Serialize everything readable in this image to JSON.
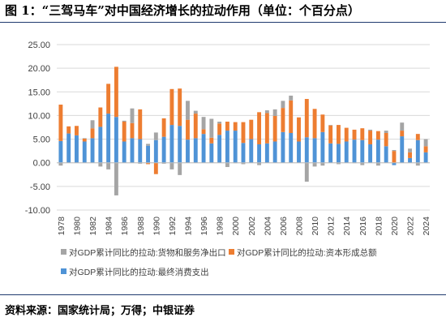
{
  "figure": {
    "title": "图 1：“三驾马车”对中国经济增长的拉动作用（单位：个百分点）",
    "source": "资料来源：国家统计局；万得；中银证券"
  },
  "chart_data": {
    "type": "bar",
    "stacked": true,
    "ylim": [
      -10,
      25
    ],
    "yticks": [
      "-10.00",
      "-5.00",
      "0.00",
      "5.00",
      "10.00",
      "15.00",
      "20.00",
      "25.00"
    ],
    "ytick_values": [
      -10,
      -5,
      0,
      5,
      10,
      15,
      20,
      25
    ],
    "grid": true,
    "legend_position": "bottom",
    "categories": [
      "1978",
      "1979",
      "1980",
      "1981",
      "1982",
      "1983",
      "1984",
      "1985",
      "1986",
      "1987",
      "1988",
      "1989",
      "1990",
      "1991",
      "1992",
      "1993",
      "1994",
      "1995",
      "1996",
      "1997",
      "1998",
      "1999",
      "2000",
      "2001",
      "2002",
      "2003",
      "2004",
      "2005",
      "2006",
      "2007",
      "2008",
      "2009",
      "2010",
      "2011",
      "2012",
      "2013",
      "2014",
      "2015",
      "2016",
      "2017",
      "2018",
      "2019",
      "2020",
      "2021",
      "2022",
      "2023",
      "2024"
    ],
    "xtick_labels": [
      "1978",
      "1980",
      "1982",
      "1984",
      "1986",
      "1988",
      "1990",
      "1992",
      "1994",
      "1996",
      "1998",
      "2000",
      "2002",
      "2004",
      "2006",
      "2008",
      "2010",
      "2012",
      "2014",
      "2016",
      "2018",
      "2020",
      "2022",
      "2024"
    ],
    "series": [
      {
        "name": "对GDP累计同比的拉动:最终消费支出",
        "color": "#4f93d6",
        "values": [
          4.6,
          6.2,
          5.8,
          4.5,
          5.2,
          7.6,
          10.4,
          9.7,
          4.5,
          5.2,
          5.0,
          3.6,
          4.8,
          5.5,
          8.0,
          7.8,
          4.9,
          5.2,
          6.1,
          4.1,
          5.9,
          6.8,
          6.8,
          4.2,
          5.0,
          3.9,
          4.1,
          4.5,
          6.5,
          6.3,
          4.5,
          5.4,
          5.2,
          6.5,
          4.1,
          4.0,
          4.5,
          4.9,
          4.8,
          3.9,
          4.9,
          3.5,
          -0.5,
          5.6,
          1.0,
          4.8,
          2.2
        ]
      },
      {
        "name": "对GDP累计同比的拉动:资本形成总额",
        "color": "#ed7d31",
        "values": [
          7.7,
          1.5,
          2.0,
          0.6,
          2.1,
          4.1,
          6.3,
          10.6,
          4.2,
          3.2,
          6.3,
          -0.3,
          -2.4,
          3.9,
          7.6,
          7.9,
          4.2,
          5.2,
          1.0,
          1.2,
          2.4,
          1.9,
          1.8,
          4.4,
          4.1,
          6.8,
          6.4,
          5.4,
          5.1,
          6.9,
          5.1,
          8.1,
          6.2,
          3.7,
          3.8,
          4.0,
          2.9,
          2.1,
          2.5,
          2.9,
          1.8,
          2.8,
          2.5,
          1.2,
          1.2,
          1.3,
          1.3
        ]
      },
      {
        "name": "对GDP累计同比的拉动:货物和服务净出口",
        "color": "#a5a5a5",
        "values": [
          -0.6,
          0.0,
          -0.0,
          0.1,
          1.7,
          -0.8,
          -1.4,
          -6.9,
          0.2,
          3.1,
          -0.2,
          0.4,
          1.6,
          -0.2,
          -1.4,
          -2.6,
          4.0,
          0.6,
          2.6,
          4.0,
          0.4,
          -0.9,
          -0.1,
          -0.3,
          0.0,
          -0.5,
          0.6,
          1.4,
          1.5,
          1.0,
          0.0,
          -4.0,
          -0.8,
          -0.6,
          0.1,
          -0.3,
          0.0,
          -0.1,
          -0.5,
          0.2,
          -0.6,
          0.5,
          0.2,
          1.7,
          0.8,
          -0.6,
          1.5
        ]
      }
    ]
  }
}
